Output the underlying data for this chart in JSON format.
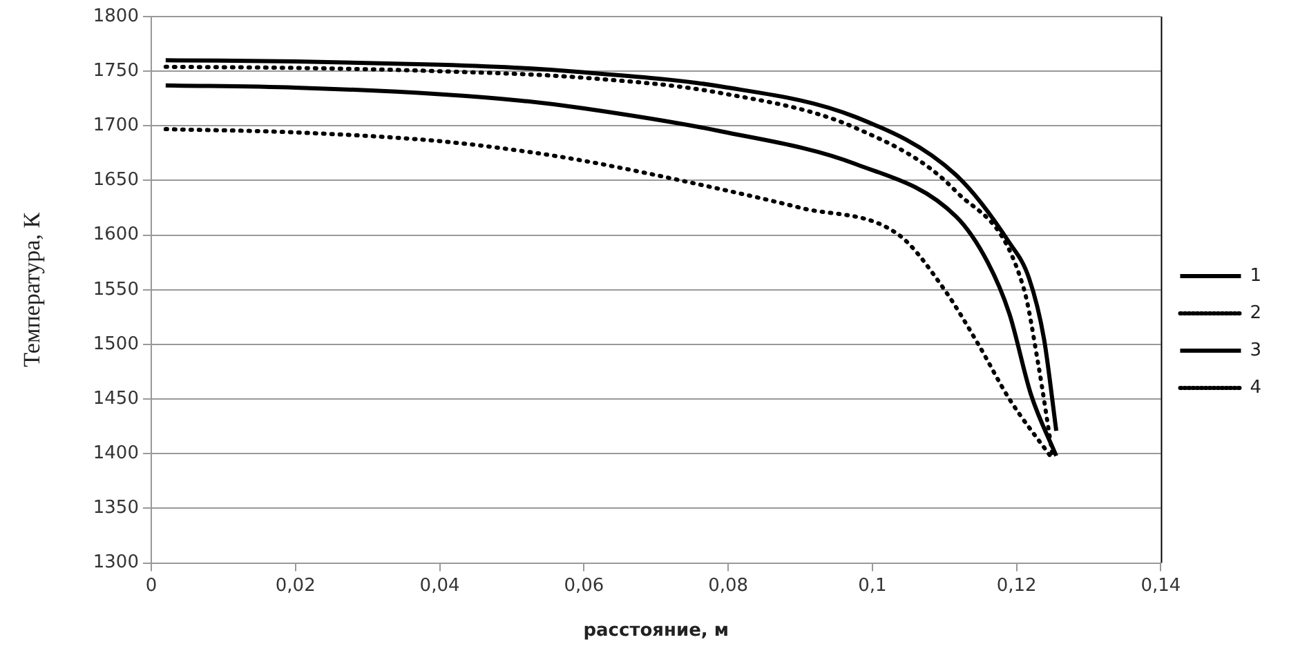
{
  "chart_data": {
    "type": "line",
    "xlabel": "расстояние, м",
    "ylabel": "Температура, К",
    "xlim": [
      0,
      0.14
    ],
    "xticks": [
      {
        "value": 0,
        "label": "0"
      },
      {
        "value": 0.02,
        "label": "0,02"
      },
      {
        "value": 0.04,
        "label": "0,04"
      },
      {
        "value": 0.06,
        "label": "0,06"
      },
      {
        "value": 0.08,
        "label": "0,08"
      },
      {
        "value": 0.1,
        "label": "0,1"
      },
      {
        "value": 0.12,
        "label": "0,12"
      },
      {
        "value": 0.14,
        "label": "0,14"
      }
    ],
    "ylim": [
      1300,
      1800
    ],
    "yticks": [
      1300,
      1350,
      1400,
      1450,
      1500,
      1550,
      1600,
      1650,
      1700,
      1750,
      1800
    ],
    "grid": "y",
    "legend": "right",
    "marker": "none",
    "series": [
      {
        "name": "1",
        "color": "#000000",
        "line_style": "solid",
        "x": [
          0.002,
          0.02,
          0.04,
          0.0514,
          0.06,
          0.079,
          0.0977,
          0.1116,
          0.119,
          0.1217,
          0.1238,
          0.1255
        ],
        "values": [
          1760,
          1759,
          1756,
          1753,
          1749,
          1736,
          1708,
          1655,
          1593,
          1561,
          1505,
          1421
        ]
      },
      {
        "name": "2",
        "color": "#000000",
        "line_style": "dotted",
        "x": [
          0.002,
          0.02,
          0.04,
          0.06,
          0.079,
          0.0977,
          0.1116,
          0.121,
          0.123,
          0.125
        ],
        "values": [
          1754,
          1753,
          1750,
          1744,
          1730,
          1698,
          1640,
          1551,
          1482,
          1398
        ]
      },
      {
        "name": "3",
        "color": "#000000",
        "line_style": "solid",
        "x": [
          0.002,
          0.02,
          0.04,
          0.0514,
          0.06,
          0.079,
          0.0977,
          0.1116,
          0.116,
          0.119,
          0.122,
          0.1255
        ],
        "values": [
          1737,
          1735,
          1729,
          1723,
          1716,
          1695,
          1665,
          1617,
          1575,
          1528,
          1454,
          1398
        ]
      },
      {
        "name": "4",
        "color": "#000000",
        "line_style": "dotted",
        "x": [
          0.002,
          0.02,
          0.04,
          0.0514,
          0.06,
          0.079,
          0.09,
          0.1037,
          0.11,
          0.1147,
          0.119,
          0.125
        ],
        "values": [
          1697,
          1694,
          1686,
          1677,
          1668,
          1642,
          1625,
          1600,
          1550,
          1500,
          1450,
          1395
        ]
      }
    ]
  }
}
